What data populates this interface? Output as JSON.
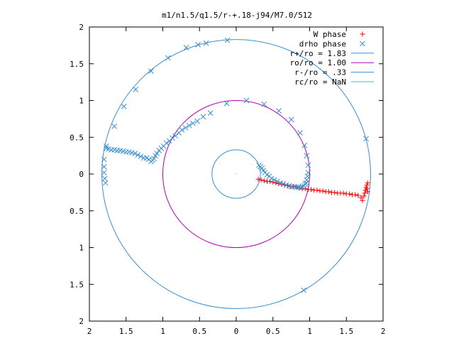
{
  "chart_data": {
    "type": "scatter",
    "title": "m1/n1.5/q1.5/r-+.18-j94/M7.0/512",
    "xlabel": "",
    "ylabel": "",
    "xlim": [
      -2,
      2
    ],
    "ylim": [
      -2,
      2
    ],
    "x_ticks": [
      -2,
      -1.5,
      -1,
      -0.5,
      0,
      0.5,
      1,
      1.5,
      2
    ],
    "y_ticks": [
      -2,
      -1.5,
      -1,
      -0.5,
      0,
      0.5,
      1,
      1.5,
      2
    ],
    "x_tick_labels": [
      "2",
      "1.5",
      "1",
      "0.5",
      "0",
      "0.5",
      "1",
      "1.5",
      "2"
    ],
    "y_tick_labels": [
      "2",
      "1.5",
      "1",
      "0.5",
      "0",
      "0.5",
      "1",
      "1.5",
      "2"
    ],
    "grid": false,
    "legend_position": "top-right",
    "legend": [
      {
        "label": "W phase",
        "marker": "plus",
        "color": "#ff0000"
      },
      {
        "label": "drho phase",
        "marker": "cross",
        "color": "#0060ad"
      },
      {
        "label": "r+/ro = 1.83",
        "marker": "line",
        "color": "#3a8fcf"
      },
      {
        "label": "ro/ro = 1.00",
        "marker": "line",
        "color": "#b000b0"
      },
      {
        "label": "r-/ro = .33",
        "marker": "line",
        "color": "#3a8fcf"
      },
      {
        "label": "rc/ro = NaN",
        "marker": "line",
        "color": "#30c0d0"
      }
    ],
    "circles": [
      {
        "name": "r+/ro = 1.83",
        "radius": 1.83,
        "color": "#3a8fcf"
      },
      {
        "name": "ro/ro = 1.00",
        "radius": 1.0,
        "color": "#b000b0"
      },
      {
        "name": "r-/ro = .33",
        "radius": 0.33,
        "color": "#3a8fcf"
      }
    ],
    "series": [
      {
        "name": "W phase",
        "marker": "plus",
        "color": "#ff0000",
        "x": [
          0.3,
          0.34,
          0.38,
          0.42,
          0.46,
          0.5,
          0.54,
          0.58,
          0.62,
          0.66,
          0.7,
          0.74,
          0.78,
          0.82,
          0.86,
          0.9,
          0.94,
          0.98,
          1.02,
          1.06,
          1.1,
          1.14,
          1.18,
          1.22,
          1.26,
          1.3,
          1.34,
          1.38,
          1.42,
          1.46,
          1.5,
          1.54,
          1.58,
          1.62,
          1.66,
          1.7,
          1.72,
          1.74,
          1.75,
          1.76,
          1.77,
          1.78,
          1.78,
          1.79,
          1.79
        ],
        "y": [
          -0.07,
          -0.08,
          -0.09,
          -0.1,
          -0.1,
          -0.11,
          -0.12,
          -0.13,
          -0.14,
          -0.15,
          -0.16,
          -0.17,
          -0.17,
          -0.18,
          -0.19,
          -0.2,
          -0.2,
          -0.21,
          -0.21,
          -0.22,
          -0.22,
          -0.23,
          -0.23,
          -0.24,
          -0.24,
          -0.25,
          -0.25,
          -0.26,
          -0.26,
          -0.26,
          -0.27,
          -0.27,
          -0.28,
          -0.28,
          -0.29,
          -0.32,
          -0.36,
          -0.3,
          -0.26,
          -0.22,
          -0.18,
          -0.15,
          -0.2,
          -0.24,
          -0.12
        ]
      },
      {
        "name": "drho phase",
        "marker": "cross",
        "color": "#3a8fcf",
        "x": [
          1.77,
          0.92,
          -0.12,
          -0.41,
          -0.52,
          -0.68,
          -0.93,
          -1.16,
          -1.37,
          -1.53,
          -1.66,
          -1.77,
          -1.8,
          -1.8,
          -1.8,
          -1.79,
          -1.78,
          -1.77,
          -1.74,
          -1.7,
          -1.66,
          -1.62,
          -1.58,
          -1.54,
          -1.5,
          -1.46,
          -1.42,
          -1.38,
          -1.34,
          -1.3,
          -1.26,
          -1.22,
          -1.19,
          -1.16,
          -1.14,
          -1.12,
          -1.1,
          -1.08,
          -1.05,
          -1.02,
          -0.99,
          -0.95,
          -0.91,
          -0.87,
          -0.83,
          -0.78,
          -0.74,
          -0.69,
          -0.64,
          -0.59,
          -0.53,
          -0.45,
          -0.35,
          -0.13,
          0.14,
          0.38,
          0.58,
          0.75,
          0.87,
          0.93,
          0.96,
          0.98,
          0.98,
          0.97,
          0.96,
          0.95,
          0.94,
          0.92,
          0.9,
          0.88,
          0.85,
          0.82,
          0.79,
          0.75,
          0.72,
          0.68,
          0.64,
          0.6,
          0.56,
          0.52,
          0.48,
          0.45,
          0.42,
          0.39,
          0.37,
          0.35,
          0.33,
          0.31
        ],
        "y": [
          0.48,
          -1.58,
          1.82,
          1.78,
          1.76,
          1.72,
          1.58,
          1.4,
          1.15,
          0.92,
          0.65,
          0.38,
          0.2,
          0.1,
          0.02,
          -0.06,
          -0.12,
          0.35,
          0.34,
          0.33,
          0.33,
          0.32,
          0.32,
          0.31,
          0.3,
          0.3,
          0.29,
          0.28,
          0.26,
          0.24,
          0.22,
          0.22,
          0.2,
          0.17,
          0.19,
          0.21,
          0.25,
          0.28,
          0.32,
          0.35,
          0.38,
          0.42,
          0.45,
          0.49,
          0.52,
          0.56,
          0.6,
          0.63,
          0.66,
          0.69,
          0.72,
          0.78,
          0.83,
          0.96,
          1.0,
          0.95,
          0.86,
          0.74,
          0.56,
          0.39,
          0.25,
          0.12,
          0.02,
          -0.03,
          -0.08,
          -0.12,
          -0.14,
          -0.16,
          -0.17,
          -0.18,
          -0.18,
          -0.18,
          -0.17,
          -0.17,
          -0.16,
          -0.15,
          -0.13,
          -0.12,
          -0.1,
          -0.08,
          -0.06,
          -0.03,
          -0.01,
          0.02,
          0.05,
          0.08,
          0.1,
          0.12
        ]
      }
    ]
  }
}
